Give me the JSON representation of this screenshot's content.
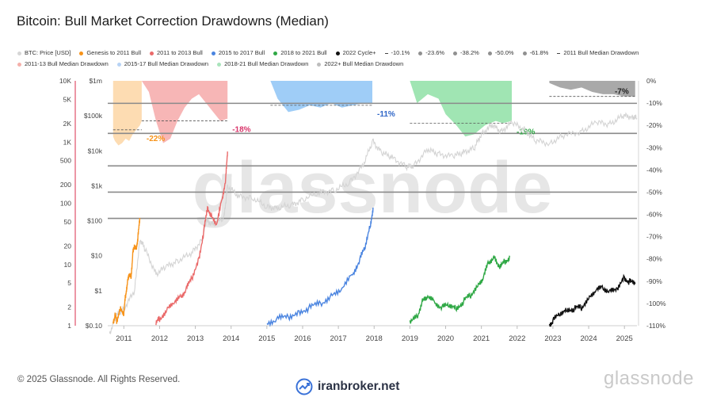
{
  "title": "Bitcoin: Bull Market Correction Drawdowns (Median)",
  "legend": {
    "row1": [
      {
        "label": "BTC: Price [USD]",
        "color": "#d6d6d6",
        "kind": "dot"
      },
      {
        "label": "Genesis to 2011 Bull",
        "color": "#f7931a",
        "kind": "dot"
      },
      {
        "label": "2011 to 2013 Bull",
        "color": "#ea6a6a",
        "kind": "dot"
      },
      {
        "label": "2015 to 2017 Bull",
        "color": "#4a84e0",
        "kind": "dot"
      },
      {
        "label": "2018 to 2021 Bull",
        "color": "#2fa845",
        "kind": "dot"
      },
      {
        "label": "2022 Cycle+",
        "color": "#111111",
        "kind": "dot"
      },
      {
        "label": "-10.1%",
        "color": "#444444",
        "kind": "dash"
      },
      {
        "label": "-23.6%",
        "color": "#909090",
        "kind": "dot"
      },
      {
        "label": "-38.2%",
        "color": "#909090",
        "kind": "dot"
      },
      {
        "label": "-50.0%",
        "color": "#909090",
        "kind": "dot"
      },
      {
        "label": "-61.8%",
        "color": "#909090",
        "kind": "dot"
      },
      {
        "label": "2011 Bull Median Drawdown",
        "color": "#444444",
        "kind": "dash"
      }
    ],
    "row2": [
      {
        "label": "2011-13 Bull Median Drawdown",
        "color": "#f5b0aa",
        "kind": "dot"
      },
      {
        "label": "2015-17 Bull Median Drawdown",
        "color": "#b7d3f5",
        "kind": "dot"
      },
      {
        "label": "2018-21 Bull Median Drawdown",
        "color": "#a9e4bb",
        "kind": "dot"
      },
      {
        "label": "2022+ Bull Median Drawdown",
        "color": "#bdbdbd",
        "kind": "dot"
      }
    ]
  },
  "footer": "© 2025 Glassnode. All Rights Reserved.",
  "brand": "glassnode",
  "watermark": "iranbroker.net",
  "watermark_center": "glassnode",
  "chart_data": {
    "type": "line",
    "x_ticks": [
      "2011",
      "2012",
      "2013",
      "2014",
      "2015",
      "2016",
      "2017",
      "2018",
      "2019",
      "2020",
      "2021",
      "2022",
      "2023",
      "2024",
      "2025"
    ],
    "axis_left_cycle": {
      "labels": [
        "10K",
        "5K",
        "2K",
        "1K",
        "500",
        "200",
        "100",
        "50",
        "20",
        "10",
        "5",
        "2",
        "1"
      ],
      "values": [
        10000,
        5000,
        2000,
        1000,
        500,
        200,
        100,
        50,
        20,
        10,
        5,
        2,
        1
      ],
      "scale": "log"
    },
    "axis_left_price": {
      "labels": [
        "$1m",
        "$100k",
        "$10k",
        "$1k",
        "$100",
        "$10",
        "$1",
        "$0.10"
      ],
      "values": [
        1000000,
        100000,
        10000,
        1000,
        100,
        10,
        1,
        0.1
      ],
      "scale": "log"
    },
    "axis_right_drawdown": {
      "labels": [
        "0%",
        "-10%",
        "-20%",
        "-30%",
        "-40%",
        "-50%",
        "-60%",
        "-70%",
        "-80%",
        "-90%",
        "-100%",
        "-110%"
      ],
      "values": [
        0,
        -10,
        -20,
        -30,
        -40,
        -50,
        -60,
        -70,
        -80,
        -90,
        -100,
        -110
      ]
    },
    "fib_levels": [
      -10.1,
      -23.6,
      -38.2,
      -50.0,
      -61.8
    ],
    "median_drawdowns": [
      {
        "name": "2011 Bull Median Drawdown",
        "value": -22,
        "label": "-22%",
        "color": "#f7931a",
        "fill": "#fdd6a5",
        "x0": 2010.7,
        "x1": 2011.5
      },
      {
        "name": "2011-13 Bull Median Drawdown",
        "value": -18,
        "label": "-18%",
        "color": "#d9346a",
        "fill": "#f6a9a9",
        "x0": 2011.5,
        "x1": 2013.9
      },
      {
        "name": "2015-17 Bull Median Drawdown",
        "value": -11,
        "label": "-11%",
        "color": "#2f66c7",
        "fill": "#8ec4f6",
        "x0": 2015.1,
        "x1": 2017.95
      },
      {
        "name": "2018-21 Bull Median Drawdown",
        "value": -19,
        "label": "-19%",
        "color": "#2fa845",
        "fill": "#8fe0a6",
        "x0": 2019.0,
        "x1": 2021.85
      },
      {
        "name": "2022+ Bull Median Drawdown",
        "value": -7,
        "label": "-7%",
        "color": "#222222",
        "fill": "#9a9a9a",
        "x0": 2022.9,
        "x1": 2025.3
      }
    ],
    "drawdown_bands": [
      {
        "series": "2011",
        "x": [
          2010.7,
          2010.75,
          2010.85,
          2010.95,
          2011.05,
          2011.15,
          2011.25,
          2011.35,
          2011.45,
          2011.5
        ],
        "y": [
          -25,
          -27,
          -29,
          -28,
          -26,
          -27,
          -24,
          -22,
          -20,
          -18
        ]
      },
      {
        "series": "2011-13",
        "x": [
          2011.5,
          2011.7,
          2011.9,
          2012.1,
          2012.3,
          2012.5,
          2012.7,
          2012.9,
          2013.1,
          2013.3,
          2013.5,
          2013.7,
          2013.9
        ],
        "y": [
          0,
          -5,
          -18,
          -28,
          -26,
          -18,
          -12,
          -8,
          -6,
          -10,
          -14,
          -18,
          -17
        ]
      },
      {
        "series": "2015-17",
        "x": [
          2015.1,
          2015.3,
          2015.6,
          2015.9,
          2016.2,
          2016.5,
          2016.8,
          2017.1,
          2017.4,
          2017.7,
          2017.95
        ],
        "y": [
          0,
          -8,
          -14,
          -13,
          -11,
          -12,
          -10,
          -12,
          -11,
          -10,
          -10
        ]
      },
      {
        "series": "2018-21",
        "x": [
          2019.0,
          2019.2,
          2019.5,
          2019.8,
          2020.0,
          2020.3,
          2020.55,
          2020.8,
          2021.1,
          2021.4,
          2021.6,
          2021.85
        ],
        "y": [
          0,
          -10,
          -6,
          -8,
          -15,
          -20,
          -25,
          -24,
          -20,
          -18,
          -19,
          -18
        ]
      },
      {
        "series": "2022+",
        "x": [
          2022.9,
          2023.2,
          2023.5,
          2023.8,
          2024.1,
          2024.4,
          2024.7,
          2025.0,
          2025.3
        ],
        "y": [
          -1,
          -3,
          -4,
          -3,
          -5,
          -6,
          -6,
          -7,
          -7
        ]
      }
    ],
    "btc_price": {
      "name": "BTC: Price [USD]",
      "x": [
        2010.6,
        2010.8,
        2011.0,
        2011.3,
        2011.45,
        2011.6,
        2011.9,
        2012.2,
        2012.5,
        2012.9,
        2013.2,
        2013.3,
        2013.5,
        2013.8,
        2013.9,
        2014.2,
        2014.6,
        2015.0,
        2015.3,
        2015.7,
        2016.0,
        2016.5,
        2016.9,
        2017.3,
        2017.7,
        2017.96,
        2018.2,
        2018.5,
        2018.9,
        2019.1,
        2019.5,
        2019.8,
        2020.2,
        2020.5,
        2020.8,
        2021.0,
        2021.3,
        2021.55,
        2021.85,
        2022.2,
        2022.5,
        2022.9,
        2023.3,
        2023.8,
        2024.2,
        2024.6,
        2024.95,
        2025.2,
        2025.35
      ],
      "y": [
        0.06,
        0.2,
        0.3,
        1.0,
        30,
        15,
        3.0,
        5,
        7,
        12,
        30,
        100,
        80,
        120,
        1000,
        500,
        450,
        250,
        230,
        280,
        400,
        650,
        750,
        1200,
        4000,
        19000,
        9000,
        6500,
        3500,
        3700,
        11000,
        8000,
        7000,
        9000,
        12000,
        30000,
        55000,
        35000,
        65000,
        40000,
        20000,
        16000,
        28000,
        35000,
        65000,
        58000,
        100000,
        95000,
        85000
      ]
    },
    "cycle_series": [
      {
        "name": "Genesis to 2011 Bull",
        "color": "#f7931a",
        "x": [
          2010.7,
          2010.75,
          2010.8,
          2010.9,
          2011.0,
          2011.05,
          2011.1,
          2011.15,
          2011.2,
          2011.25,
          2011.3,
          2011.35,
          2011.4,
          2011.45
        ],
        "y": [
          1.1,
          1.5,
          1.2,
          1.9,
          1.6,
          3.2,
          5,
          7,
          6,
          15,
          20,
          18,
          30,
          55
        ]
      },
      {
        "name": "2011 to 2013 Bull",
        "color": "#ea6a6a",
        "x": [
          2011.9,
          2012.0,
          2012.2,
          2012.4,
          2012.6,
          2012.75,
          2012.9,
          2013.1,
          2013.25,
          2013.35,
          2013.45,
          2013.6,
          2013.75,
          2013.85,
          2013.9
        ],
        "y": [
          1.1,
          1.3,
          1.8,
          2.4,
          3.0,
          4.0,
          6.0,
          12.0,
          40,
          85,
          60,
          45,
          120,
          250,
          700
        ]
      },
      {
        "name": "2015 to 2017 Bull",
        "color": "#4a84e0",
        "x": [
          2015.0,
          2015.3,
          2015.6,
          2015.9,
          2016.2,
          2016.5,
          2016.8,
          2017.1,
          2017.4,
          2017.6,
          2017.75,
          2017.9,
          2017.97
        ],
        "y": [
          1.1,
          1.3,
          1.4,
          1.6,
          2.0,
          2.3,
          3.0,
          4.0,
          7.0,
          12.0,
          20.0,
          45.0,
          85.0
        ]
      },
      {
        "name": "2018 to 2021 Bull",
        "color": "#2fa845",
        "x": [
          2019.0,
          2019.2,
          2019.35,
          2019.5,
          2019.7,
          2019.9,
          2020.1,
          2020.3,
          2020.5,
          2020.7,
          2020.9,
          2021.05,
          2021.2,
          2021.35,
          2021.5,
          2021.65,
          2021.8
        ],
        "y": [
          1.1,
          1.4,
          2.5,
          3.0,
          2.4,
          2.0,
          2.2,
          1.9,
          2.5,
          3.2,
          4.5,
          6.0,
          11.0,
          13.0,
          9.0,
          11.0,
          13.5
        ]
      },
      {
        "name": "2022 Cycle+",
        "color": "#111111",
        "x": [
          2022.9,
          2023.0,
          2023.2,
          2023.4,
          2023.6,
          2023.8,
          2024.0,
          2024.2,
          2024.4,
          2024.6,
          2024.8,
          2025.0,
          2025.15,
          2025.3
        ],
        "y": [
          1.05,
          1.2,
          1.6,
          1.8,
          1.9,
          2.0,
          2.8,
          3.8,
          4.2,
          3.6,
          4.0,
          6.0,
          5.2,
          4.8
        ]
      }
    ]
  }
}
